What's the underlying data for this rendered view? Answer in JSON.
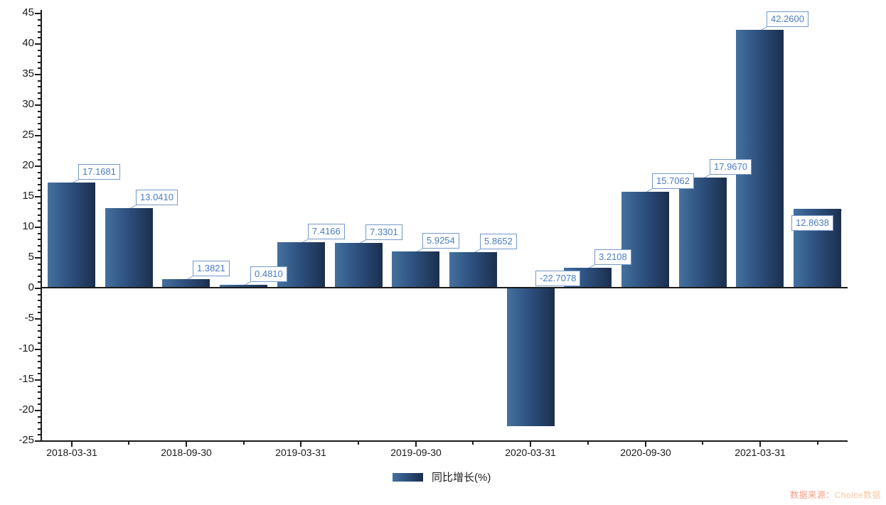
{
  "chart_data": {
    "type": "bar",
    "title": "",
    "legend": "同比增长(%)",
    "legend_position": "bottom-center",
    "grid": false,
    "ylim": [
      -25,
      45
    ],
    "y_tick_step_major": 5,
    "y_tick_step_minor": 1,
    "y_ticks": [
      45,
      40,
      35,
      30,
      25,
      20,
      15,
      10,
      5,
      0,
      -5,
      -10,
      -15,
      -20,
      -25
    ],
    "x_tick_labels": [
      "2018-03-31",
      "2018-09-30",
      "2019-03-31",
      "2019-09-30",
      "2020-03-31",
      "2020-09-30",
      "2021-03-31"
    ],
    "x_labeled_bar_indices": [
      0,
      2,
      4,
      6,
      8,
      10,
      12
    ],
    "series": [
      {
        "name": "同比增长(%)",
        "values": [
          17.1681,
          13.041,
          1.3821,
          0.481,
          7.4166,
          7.3301,
          5.9254,
          5.8652,
          -22.7078,
          3.2108,
          15.7062,
          17.967,
          42.26,
          12.8638
        ],
        "value_labels": [
          "17.1681",
          "13.0410",
          "1.3821",
          "0.4810",
          "7.4166",
          "7.3301",
          "5.9254",
          "5.8652",
          "-22.7078",
          "3.2108",
          "15.7062",
          "17.9670",
          "42.2600",
          "12.8638"
        ]
      }
    ],
    "source_prefix": "数据来源：",
    "source_name": "Choice数据",
    "colors": {
      "bar_gradient": [
        "#44719F",
        "#2E5180",
        "#1B2F4E"
      ],
      "value_label_text": "#4A7CC0",
      "value_label_border": "#7498CA",
      "leader_line": "#7498CA",
      "axis": "#1a1a1a",
      "tick_label": "#1a1a1a",
      "source_prefix": "#F59B82",
      "source_name": "#F9C49E"
    }
  }
}
